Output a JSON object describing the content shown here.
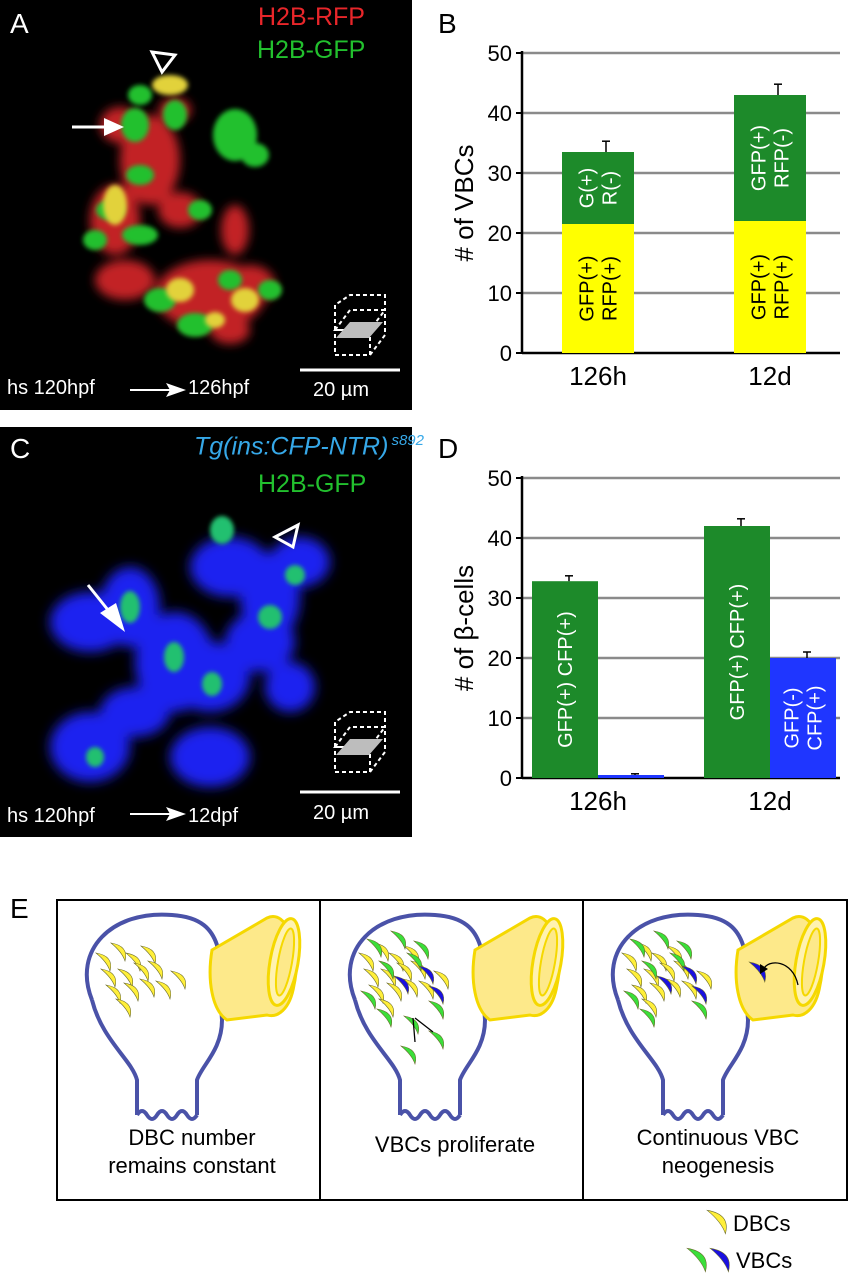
{
  "panelA": {
    "letter": "A",
    "legend_red": "H2B-RFP",
    "legend_green": "H2B-GFP",
    "caption_left": "hs 120hpf",
    "caption_right": "126hpf",
    "scale_label": "20 µm",
    "colors": {
      "red": "#e8262a",
      "green": "#22c02e",
      "yellow": "#e0d23a"
    }
  },
  "panelC": {
    "letter": "C",
    "legend_blue_pre": "Tg(ins:",
    "legend_blue_mid": "CFP-NTR)",
    "legend_blue_sup": "s892",
    "legend_green": "H2B-GFP",
    "caption_left": "hs 120hpf",
    "caption_right": "12dpf",
    "scale_label": "20 µm",
    "colors": {
      "blue": "#1c2cff",
      "cyan_text": "#36a8e8",
      "green": "#22c02e"
    }
  },
  "chart_data": [
    {
      "panel": "B",
      "type": "bar",
      "stacked": true,
      "ylabel": "# of VBCs",
      "ylim": [
        0,
        50
      ],
      "yticks": [
        0,
        10,
        20,
        30,
        40,
        50
      ],
      "categories": [
        "126h",
        "12d"
      ],
      "series": [
        {
          "name": "GFP(+) RFP(+)",
          "color": "#ffff00",
          "values": [
            21.5,
            22
          ],
          "bar_labels": [
            "GFP(+)\nRFP(+)",
            "GFP(+)\nRFP(+)"
          ]
        },
        {
          "name": "GFP(+) RFP(-)",
          "color": "#1d8a2a",
          "values": [
            12,
            21
          ],
          "bar_labels": [
            "G(+)\nR(-)",
            "GFP(+)\nRFP(-)"
          ]
        }
      ],
      "error_bars": [
        1.8,
        1.8
      ],
      "grid": true
    },
    {
      "panel": "D",
      "type": "bar",
      "stacked": false,
      "ylabel": "# of β-cells",
      "ylim": [
        0,
        50
      ],
      "yticks": [
        0,
        10,
        20,
        30,
        40,
        50
      ],
      "categories": [
        "126h",
        "12d"
      ],
      "series": [
        {
          "name": "GFP(+) CFP(+)",
          "color": "#1d8a2a",
          "values": [
            32.8,
            42
          ],
          "bar_labels": [
            "GFP(+) CFP(+)",
            "GFP(+) CFP(+)"
          ],
          "errors": [
            0.9,
            1.2
          ]
        },
        {
          "name": "GFP(-) CFP(+)",
          "color": "#1f36ff",
          "values": [
            0.5,
            20
          ],
          "bar_labels": [
            "",
            "GFP(-)\nCFP(+)"
          ],
          "errors": [
            0.2,
            1.0
          ]
        }
      ],
      "grid": true
    }
  ],
  "panelE": {
    "letter": "E",
    "captions": [
      [
        "DBC number",
        "remains constant"
      ],
      [
        "VBCs proliferate"
      ],
      [
        "Continuous VBC",
        "neogenesis"
      ]
    ],
    "legend": [
      {
        "label": "DBCs",
        "colors": [
          "#ffef3a"
        ]
      },
      {
        "label": "VBCs",
        "colors": [
          "#3adf3a",
          "#1a10e0"
        ]
      }
    ],
    "colors": {
      "islet_outline": "#4a52a8",
      "duct_fill": "#fde98a",
      "duct_outline": "#f5d800",
      "dbc": "#ffef3a",
      "vbc_green": "#3adf3a",
      "vbc_blue": "#1a10e0"
    }
  }
}
